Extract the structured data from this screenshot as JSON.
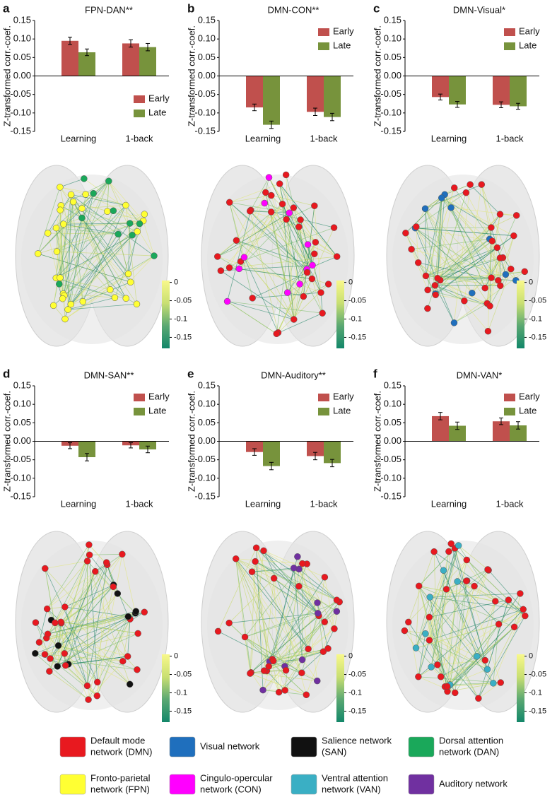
{
  "chart_data": [
    {
      "type": "bar",
      "panel": "a",
      "title": "FPN-DAN**",
      "ylabel": "Z-transformed corr.-coef.",
      "categories": [
        "Learning",
        "1-back"
      ],
      "series": [
        {
          "name": "Early",
          "color": "#c0504d",
          "values": [
            0.095,
            0.088
          ],
          "errors": [
            0.01,
            0.01
          ]
        },
        {
          "name": "Late",
          "color": "#77933c",
          "values": [
            0.064,
            0.078
          ],
          "errors": [
            0.009,
            0.01
          ]
        }
      ],
      "ylim": [
        -0.15,
        0.15
      ],
      "yticks": [
        0.15,
        {
          "value": 0.1,
          "label": "0.10"
        },
        0.05,
        {
          "value": 0,
          "label": "0.00"
        },
        -0.05,
        {
          "value": -0.1,
          "label": "-0.10"
        },
        -0.15
      ],
      "legend": "bottom-right"
    },
    {
      "type": "bar",
      "panel": "b",
      "title": "DMN-CON**",
      "ylabel": "Z-transformed corr.-coef.",
      "categories": [
        "Learning",
        "1-back"
      ],
      "series": [
        {
          "name": "Early",
          "color": "#c0504d",
          "values": [
            -0.085,
            -0.097
          ],
          "errors": [
            0.009,
            0.01
          ]
        },
        {
          "name": "Late",
          "color": "#77933c",
          "values": [
            -0.132,
            -0.111
          ],
          "errors": [
            0.01,
            0.01
          ]
        }
      ],
      "ylim": [
        -0.15,
        0.15
      ],
      "yticks": [
        0.15,
        {
          "value": 0.1,
          "label": "0.10"
        },
        0.05,
        {
          "value": 0,
          "label": "0.00"
        },
        -0.05,
        {
          "value": -0.1,
          "label": "-0.10"
        },
        -0.15
      ],
      "legend": "top-right"
    },
    {
      "type": "bar",
      "panel": "c",
      "title": "DMN-Visual*",
      "ylabel": "Z-transformed corr.-coef.",
      "categories": [
        "Learning",
        "1-back"
      ],
      "series": [
        {
          "name": "Early",
          "color": "#c0504d",
          "values": [
            -0.057,
            -0.078
          ],
          "errors": [
            0.008,
            0.008
          ]
        },
        {
          "name": "Late",
          "color": "#77933c",
          "values": [
            -0.077,
            -0.082
          ],
          "errors": [
            0.008,
            0.008
          ]
        }
      ],
      "ylim": [
        -0.15,
        0.15
      ],
      "yticks": [
        0.15,
        {
          "value": 0.1,
          "label": "0.10"
        },
        0.05,
        {
          "value": 0,
          "label": "0.00"
        },
        -0.05,
        {
          "value": -0.1,
          "label": "-0.10"
        },
        -0.15
      ],
      "legend": "top-right"
    },
    {
      "type": "bar",
      "panel": "d",
      "title": "DMN-SAN**",
      "ylabel": "Z-transformed corr.-coef.",
      "categories": [
        "Learning",
        "1-back"
      ],
      "series": [
        {
          "name": "Early",
          "color": "#c0504d",
          "values": [
            -0.012,
            -0.011
          ],
          "errors": [
            0.008,
            0.007
          ]
        },
        {
          "name": "Late",
          "color": "#77933c",
          "values": [
            -0.043,
            -0.022
          ],
          "errors": [
            0.01,
            0.009
          ]
        }
      ],
      "ylim": [
        -0.15,
        0.15
      ],
      "yticks": [
        0.15,
        {
          "value": 0.1,
          "label": "0.10"
        },
        0.05,
        {
          "value": 0,
          "label": "0.00"
        },
        -0.05,
        {
          "value": -0.1,
          "label": "-0.10"
        },
        -0.15
      ],
      "legend": "top-right"
    },
    {
      "type": "bar",
      "panel": "e",
      "title": "DMN-Auditory**",
      "ylabel": "Z-transformed corr.-coef.",
      "categories": [
        "Learning",
        "1-back"
      ],
      "series": [
        {
          "name": "Early",
          "color": "#c0504d",
          "values": [
            -0.029,
            -0.04
          ],
          "errors": [
            0.009,
            0.01
          ]
        },
        {
          "name": "Late",
          "color": "#77933c",
          "values": [
            -0.067,
            -0.059
          ],
          "errors": [
            0.01,
            0.01
          ]
        }
      ],
      "ylim": [
        -0.15,
        0.15
      ],
      "yticks": [
        0.15,
        {
          "value": 0.1,
          "label": "0.10"
        },
        0.05,
        {
          "value": 0,
          "label": "0.00"
        },
        -0.05,
        {
          "value": -0.1,
          "label": "-0.10"
        },
        -0.15
      ],
      "legend": "top-right"
    },
    {
      "type": "bar",
      "panel": "f",
      "title": "DMN-VAN*",
      "ylabel": "Z-transformed corr.-coef.",
      "categories": [
        "Learning",
        "1-back"
      ],
      "series": [
        {
          "name": "Early",
          "color": "#c0504d",
          "values": [
            0.068,
            0.054
          ],
          "errors": [
            0.01,
            0.009
          ]
        },
        {
          "name": "Late",
          "color": "#77933c",
          "values": [
            0.042,
            0.043
          ],
          "errors": [
            0.01,
            0.01
          ]
        }
      ],
      "ylim": [
        -0.15,
        0.15
      ],
      "yticks": [
        0.15,
        {
          "value": 0.1,
          "label": "0.10"
        },
        0.05,
        {
          "value": 0,
          "label": "0.00"
        },
        -0.05,
        {
          "value": -0.1,
          "label": "-0.10"
        },
        -0.15
      ],
      "legend": "top-right"
    }
  ],
  "colorbar": {
    "lim": [
      -0.18,
      0.005
    ],
    "ticks": [
      0,
      -0.05,
      -0.1,
      -0.15
    ],
    "colors": [
      "#f8f88a",
      "#c9df72",
      "#5aa872",
      "#13876a"
    ]
  },
  "network_legend": [
    {
      "lines": [
        "Default mode",
        "network (DMN)"
      ],
      "color": "#e8191f"
    },
    {
      "lines": [
        "Visual network"
      ],
      "color": "#1f6fbd"
    },
    {
      "lines": [
        "Salience network",
        "(SAN)"
      ],
      "color": "#111111"
    },
    {
      "lines": [
        "Dorsal attention",
        "network (DAN)"
      ],
      "color": "#1aa85a"
    },
    {
      "lines": [
        "Fronto-parietal",
        "network (FPN)"
      ],
      "color": "#ffff33"
    },
    {
      "lines": [
        "Cingulo-opercular",
        "network (CON)"
      ],
      "color": "#ff00ff"
    },
    {
      "lines": [
        "Ventral attention",
        "network (VAN)"
      ],
      "color": "#3aafc4"
    },
    {
      "lines": [
        "Auditory network"
      ],
      "color": "#7030a0"
    }
  ]
}
